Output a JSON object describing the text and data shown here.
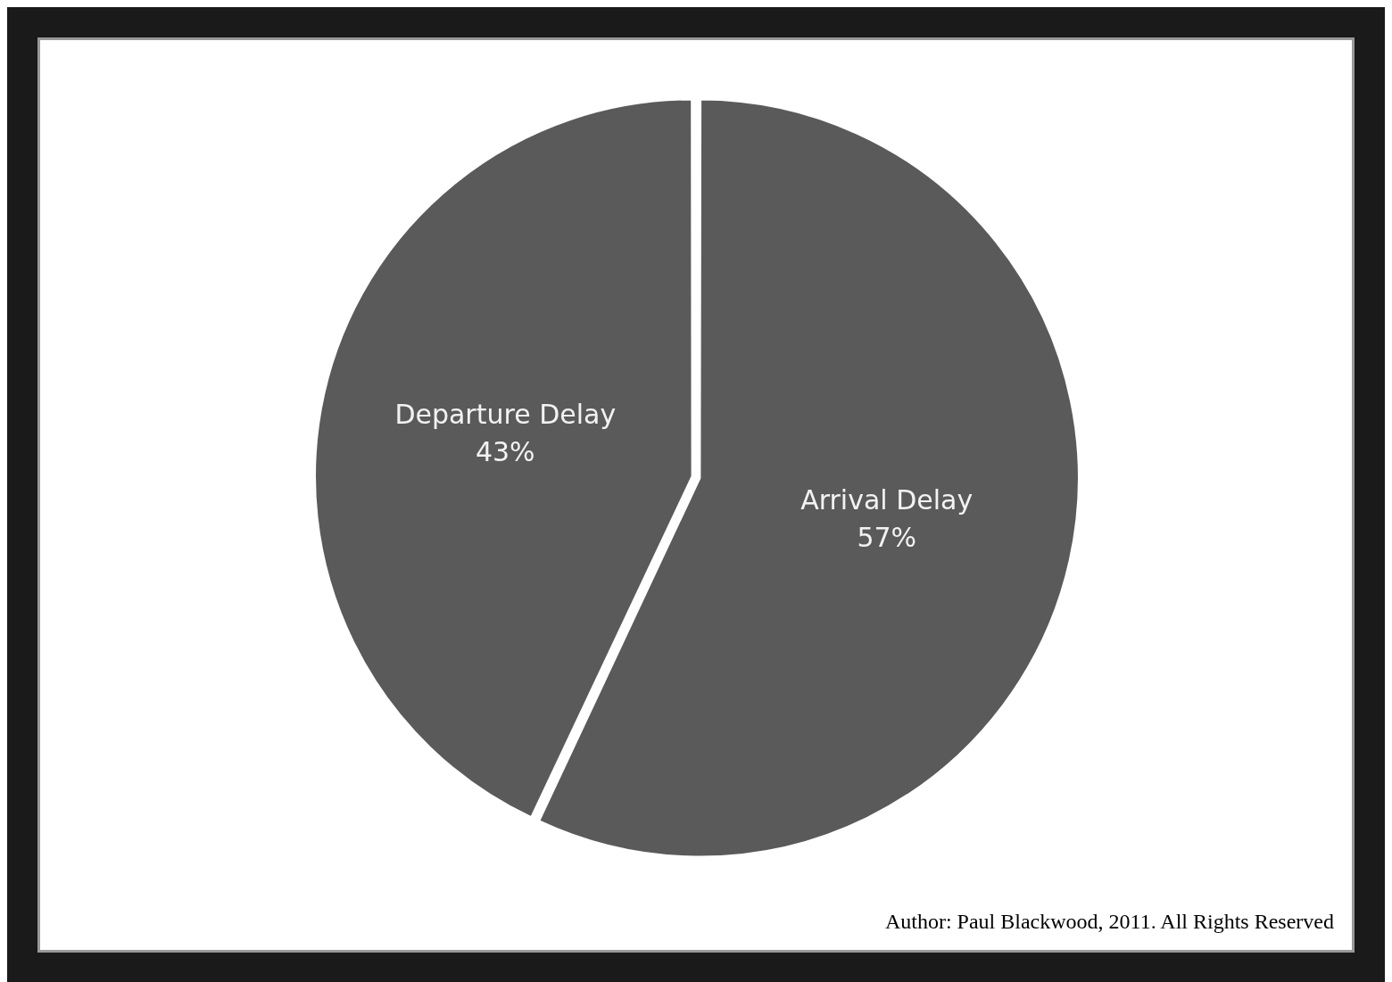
{
  "chart_data": {
    "type": "pie",
    "categories": [
      "Arrival Delay",
      "Departure Delay"
    ],
    "values": [
      57,
      43
    ],
    "colors": [
      "#5a5a5a",
      "#5a5a5a"
    ],
    "value_labels": [
      "57%",
      "43%"
    ],
    "legend": false,
    "annotations": [
      "Author: Paul Blackwood, 2011. All Rights Reserved"
    ]
  }
}
